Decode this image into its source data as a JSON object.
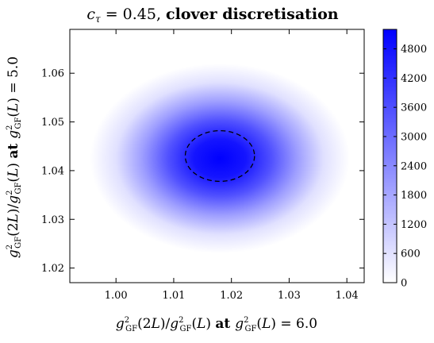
{
  "chart_data": {
    "type": "heatmap",
    "title": "c_τ = 0.45, clover discretisation",
    "title_parts": {
      "symbol": "c",
      "subscript": "τ",
      "equals": " = 0.45, ",
      "text": "clover discretisation"
    },
    "xlabel": "g²_GF(2L)/g²_GF(L) at g²_GF(L) = 6.0",
    "ylabel": "g²_GF(2L)/g²_GF(L) at g²_GF(L) = 5.0",
    "xlim": [
      0.992,
      1.043
    ],
    "ylim": [
      1.017,
      1.069
    ],
    "x_ticks": [
      {
        "value": 1.0,
        "label": "1.00"
      },
      {
        "value": 1.01,
        "label": "1.01"
      },
      {
        "value": 1.02,
        "label": "1.02"
      },
      {
        "value": 1.03,
        "label": "1.03"
      },
      {
        "value": 1.04,
        "label": "1.04"
      }
    ],
    "y_ticks": [
      {
        "value": 1.02,
        "label": "1.02"
      },
      {
        "value": 1.03,
        "label": "1.03"
      },
      {
        "value": 1.04,
        "label": "1.04"
      },
      {
        "value": 1.05,
        "label": "1.05"
      },
      {
        "value": 1.06,
        "label": "1.06"
      }
    ],
    "density": {
      "center": [
        1.018,
        1.0425
      ],
      "sigma": [
        0.0075,
        0.0065
      ],
      "peak": 5200,
      "colormap": [
        "#ffffff",
        "#0000ff"
      ]
    },
    "contour": {
      "style": "dashed",
      "center": [
        1.018,
        1.043
      ],
      "radius": [
        0.006,
        0.0052
      ]
    },
    "colorbar": {
      "range": [
        0,
        5200
      ],
      "ticks": [
        {
          "value": 0,
          "label": "0"
        },
        {
          "value": 600,
          "label": "600"
        },
        {
          "value": 1200,
          "label": "1200"
        },
        {
          "value": 1800,
          "label": "1800"
        },
        {
          "value": 2400,
          "label": "2400"
        },
        {
          "value": 3000,
          "label": "3000"
        },
        {
          "value": 3600,
          "label": "3600"
        },
        {
          "value": 4200,
          "label": "4200"
        },
        {
          "value": 4800,
          "label": "4800"
        }
      ]
    }
  }
}
